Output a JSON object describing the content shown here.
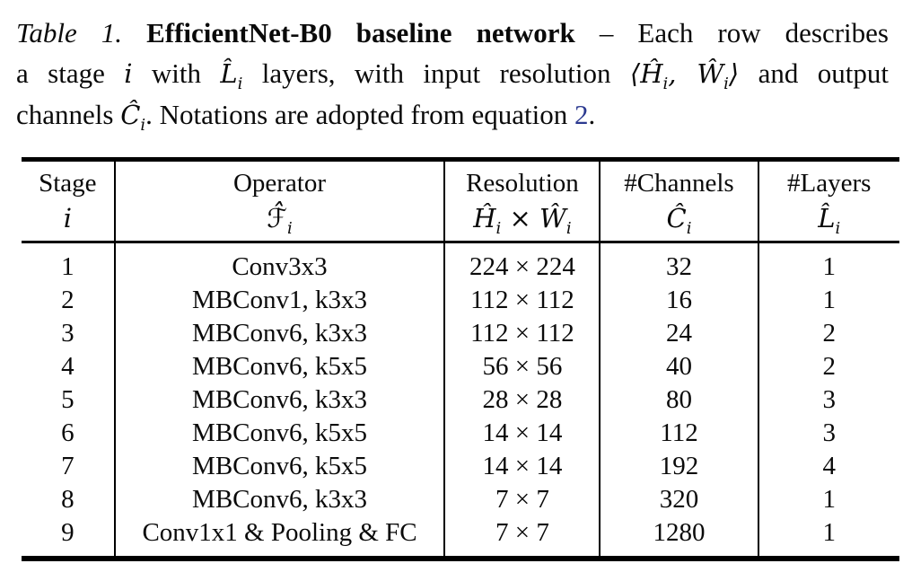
{
  "colors": {
    "text": "#0a0a0a",
    "rule": "#000000",
    "link_blue": "#2b3990",
    "background": "#ffffff"
  },
  "caption": {
    "line1": {
      "label": "Table 1.",
      "space": " ",
      "title": "EfficientNet-B0 baseline network",
      "rest": " – Each row describes"
    },
    "line2": {
      "a": "a stage ",
      "i": "i",
      "b": " with ",
      "L": "L̂",
      "subL": "i",
      "c": " layers, with input resolution ",
      "lang": "⟨",
      "H": "Ĥ",
      "subH": "i",
      "comma": ", ",
      "W": "Ŵ",
      "subW": "i",
      "rang": "⟩",
      "d": " and output"
    },
    "line3": {
      "a": "channels ",
      "C": "Ĉ",
      "subC": "i",
      "b": ". Notations are adopted from equation ",
      "ref": "2",
      "dot": "."
    }
  },
  "table": {
    "column_keys": [
      "stage",
      "operator",
      "resolution",
      "channels",
      "layers"
    ],
    "header": {
      "stage": {
        "title": "Stage",
        "sym": "i",
        "sub": ""
      },
      "operator": {
        "title": "Operator",
        "sym": "ℱ̂",
        "sub": "i"
      },
      "resolution": {
        "title": "Resolution",
        "symA": "Ĥ",
        "subA": "i",
        "times": " × ",
        "symB": "Ŵ",
        "subB": "i"
      },
      "channels": {
        "title": "#Channels",
        "sym": "Ĉ",
        "sub": "i"
      },
      "layers": {
        "title": "#Layers",
        "sym": "L̂",
        "sub": "i"
      }
    },
    "rows": [
      {
        "stage": "1",
        "operator": "Conv3x3",
        "resolution": "224 × 224",
        "channels": "32",
        "layers": "1"
      },
      {
        "stage": "2",
        "operator": "MBConv1, k3x3",
        "resolution": "112 × 112",
        "channels": "16",
        "layers": "1"
      },
      {
        "stage": "3",
        "operator": "MBConv6, k3x3",
        "resolution": "112 × 112",
        "channels": "24",
        "layers": "2"
      },
      {
        "stage": "4",
        "operator": "MBConv6, k5x5",
        "resolution": "56 × 56",
        "channels": "40",
        "layers": "2"
      },
      {
        "stage": "5",
        "operator": "MBConv6, k3x3",
        "resolution": "28 × 28",
        "channels": "80",
        "layers": "3"
      },
      {
        "stage": "6",
        "operator": "MBConv6, k5x5",
        "resolution": "14 × 14",
        "channels": "112",
        "layers": "3"
      },
      {
        "stage": "7",
        "operator": "MBConv6, k5x5",
        "resolution": "14 × 14",
        "channels": "192",
        "layers": "4"
      },
      {
        "stage": "8",
        "operator": "MBConv6, k3x3",
        "resolution": "7 × 7",
        "channels": "320",
        "layers": "1"
      },
      {
        "stage": "9",
        "operator": "Conv1x1 & Pooling & FC",
        "resolution": "7 × 7",
        "channels": "1280",
        "layers": "1"
      }
    ]
  }
}
